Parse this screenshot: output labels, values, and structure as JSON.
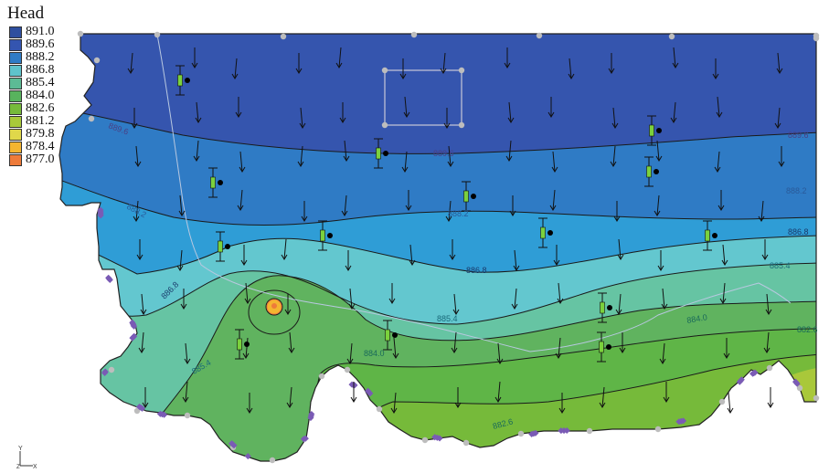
{
  "chart_data": {
    "type": "contour",
    "legend_title": "Head",
    "levels": [
      {
        "label": "891.0",
        "color": "#2f4f9f"
      },
      {
        "label": "889.6",
        "color": "#3455b0"
      },
      {
        "label": "888.2",
        "color": "#2f7cc6"
      },
      {
        "label": "886.8",
        "color": "#5fc3cb"
      },
      {
        "label": "885.4",
        "color": "#5cbb95"
      },
      {
        "label": "884.0",
        "color": "#58b35d"
      },
      {
        "label": "882.6",
        "color": "#76ba3a"
      },
      {
        "label": "881.2",
        "color": "#a8c93a"
      },
      {
        "label": "879.8",
        "color": "#e0d84a"
      },
      {
        "label": "878.4",
        "color": "#f4b530"
      },
      {
        "label": "877.0",
        "color": "#ee7b3a"
      }
    ],
    "contour_labels": [
      "889.6",
      "889.6",
      "889.6",
      "888.2",
      "888.2",
      "888.2",
      "886.8",
      "886.8",
      "886.8",
      "885.4",
      "885.4",
      "885.4",
      "884.0",
      "884.0",
      "882.6",
      "882.6"
    ],
    "axis_glyph": {
      "y": "Y",
      "x": "X",
      "z": "Z"
    }
  }
}
